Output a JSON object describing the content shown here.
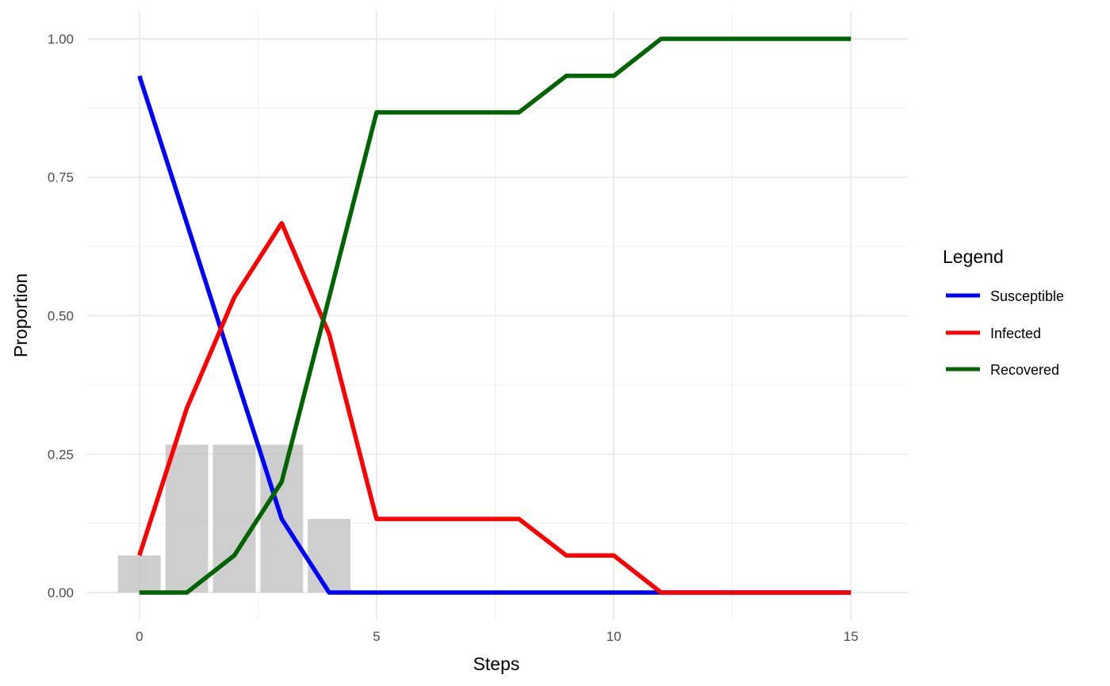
{
  "chart_data": {
    "type": "line",
    "xlabel": "Steps",
    "ylabel": "Proportion",
    "xlim": [
      -1.1,
      16.2
    ],
    "ylim": [
      -0.05,
      1.05
    ],
    "x_ticks": [
      0,
      5,
      10,
      15
    ],
    "x_tick_labels": [
      "0",
      "5",
      "10",
      "15"
    ],
    "y_ticks": [
      0,
      0.25,
      0.5,
      0.75,
      1.0
    ],
    "y_tick_labels": [
      "0.00",
      "0.25",
      "0.50",
      "0.75",
      "1.00"
    ],
    "grid": true,
    "legend": {
      "title": "Legend",
      "placement": "right",
      "entries": [
        "Susceptible",
        "Infected",
        "Recovered"
      ]
    },
    "x": [
      0,
      1,
      2,
      3,
      4,
      5,
      6,
      7,
      8,
      9,
      10,
      11,
      12,
      13,
      14,
      15
    ],
    "series": [
      {
        "name": "Susceptible",
        "color": "#0000ff",
        "values": [
          0.933,
          0.667,
          0.4,
          0.133,
          0,
          0,
          0,
          0,
          0,
          0,
          0,
          0,
          0,
          0,
          0,
          0
        ]
      },
      {
        "name": "Infected",
        "color": "#ff0000",
        "values": [
          0.067,
          0.333,
          0.533,
          0.667,
          0.467,
          0.133,
          0.133,
          0.133,
          0.133,
          0.067,
          0.067,
          0,
          0,
          0,
          0,
          0
        ]
      },
      {
        "name": "Recovered",
        "color": "#006400",
        "values": [
          0,
          0,
          0.067,
          0.2,
          0.533,
          0.867,
          0.867,
          0.867,
          0.867,
          0.933,
          0.933,
          1.0,
          1.0,
          1.0,
          1.0,
          1.0
        ]
      }
    ],
    "bars": {
      "color": "#bebebe",
      "x": [
        0,
        1,
        2,
        3,
        4
      ],
      "values": [
        0.067,
        0.267,
        0.267,
        0.267,
        0.133
      ]
    }
  }
}
